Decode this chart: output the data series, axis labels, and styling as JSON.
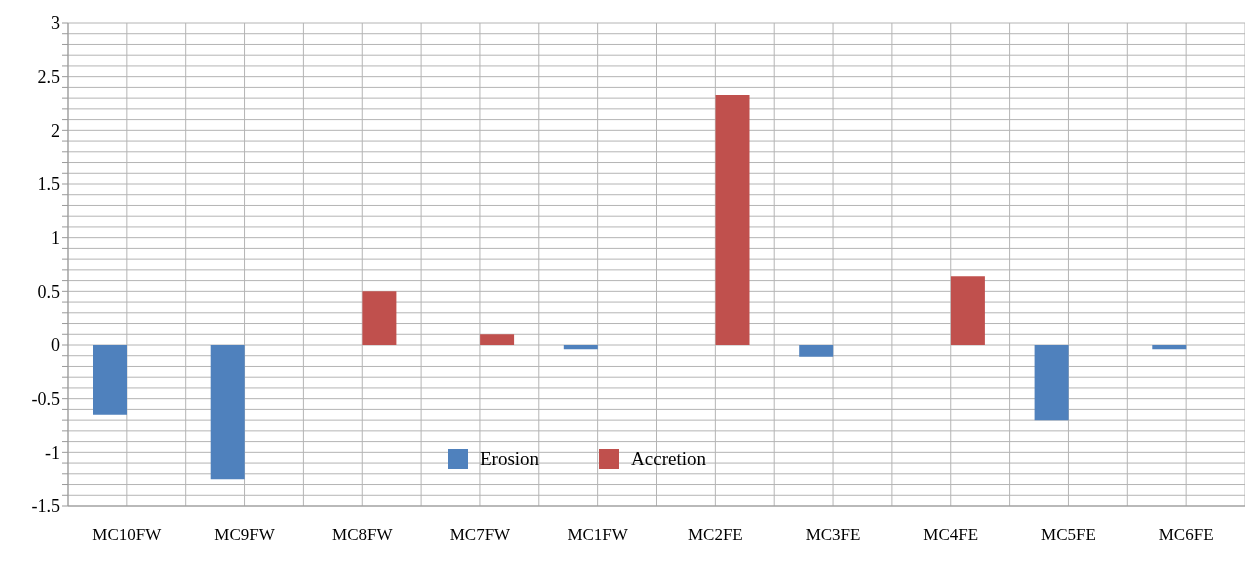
{
  "chart_data": {
    "type": "bar",
    "categories": [
      "MC10FW",
      "MC9FW",
      "MC8FW",
      "MC7FW",
      "MC1FW",
      "MC2FE",
      "MC3FE",
      "MC4FE",
      "MC5FE",
      "MC6FE"
    ],
    "series": [
      {
        "name": "Erosion",
        "color": "#4f81bd",
        "values": [
          -0.65,
          -1.25,
          null,
          null,
          -0.04,
          null,
          -0.11,
          null,
          -0.7,
          -0.04
        ]
      },
      {
        "name": "Accretion",
        "color": "#c0504d",
        "values": [
          null,
          null,
          0.5,
          0.1,
          null,
          2.33,
          null,
          0.64,
          null,
          null
        ]
      }
    ],
    "ylim": [
      -1.5,
      3
    ],
    "yticks": [
      -1.5,
      {
        "value": -1.4,
        "label": null
      },
      {
        "value": -1.3,
        "label": null
      },
      {
        "value": -1.2,
        "label": null
      },
      {
        "value": -1.1,
        "label": null
      },
      -1,
      {
        "value": -0.9,
        "label": null
      },
      {
        "value": -0.8,
        "label": null
      },
      {
        "value": -0.7,
        "label": null
      },
      {
        "value": -0.6,
        "label": null
      },
      -0.5,
      {
        "value": -0.4,
        "label": null
      },
      {
        "value": -0.3,
        "label": null
      },
      {
        "value": -0.2,
        "label": null
      },
      {
        "value": -0.1,
        "label": null
      },
      0,
      {
        "value": 0.1,
        "label": null
      },
      {
        "value": 0.2,
        "label": null
      },
      {
        "value": 0.3,
        "label": null
      },
      {
        "value": 0.4,
        "label": null
      },
      0.5,
      {
        "value": 0.6,
        "label": null
      },
      {
        "value": 0.7,
        "label": null
      },
      {
        "value": 0.8,
        "label": null
      },
      {
        "value": 0.9,
        "label": null
      },
      1,
      {
        "value": 1.1,
        "label": null
      },
      {
        "value": 1.2,
        "label": null
      },
      {
        "value": 1.3,
        "label": null
      },
      {
        "value": 1.4,
        "label": null
      },
      1.5,
      {
        "value": 1.6,
        "label": null
      },
      {
        "value": 1.7,
        "label": null
      },
      {
        "value": 1.8,
        "label": null
      },
      {
        "value": 1.9,
        "label": null
      },
      2,
      {
        "value": 2.1,
        "label": null
      },
      {
        "value": 2.2,
        "label": null
      },
      {
        "value": 2.3,
        "label": null
      },
      {
        "value": 2.4,
        "label": null
      },
      2.5,
      {
        "value": 2.6,
        "label": null
      },
      {
        "value": 2.7,
        "label": null
      },
      {
        "value": 2.8,
        "label": null
      },
      {
        "value": 2.9,
        "label": null
      },
      3
    ],
    "grid": true,
    "legend": "bottom"
  }
}
